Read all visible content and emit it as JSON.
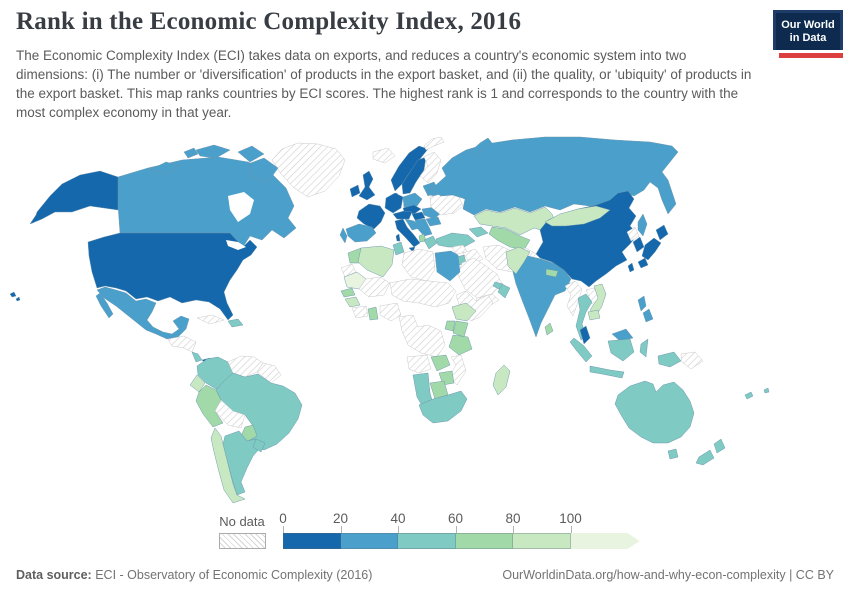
{
  "header": {
    "title": "Rank in the Economic Complexity Index, 2016",
    "subtitle": "The Economic Complexity Index (ECI) takes data on exports, and reduces a country's economic system into two dimensions: (i) The number or 'diversification' of products in the export basket, and (ii) the quality, or 'ubiquity' of products in the export basket. This map ranks countries by ECI scores. The highest rank is 1 and corresponds to the country with the most complex economy in that year.",
    "logo": {
      "line1": "Our World",
      "line2": "in Data"
    }
  },
  "legend": {
    "no_data_label": "No data",
    "ticks": [
      "0",
      "20",
      "40",
      "60",
      "80",
      "100"
    ]
  },
  "footer": {
    "source_label": "Data source:",
    "source_value": "ECI - Observatory of Economic Complexity (2016)",
    "url": "OurWorldinData.org/how-and-why-econ-complexity",
    "separator": "|",
    "license": "CC BY"
  },
  "chart_data": {
    "type": "heatmap",
    "map_type": "world-choropleth",
    "title": "Rank in the Economic Complexity Index, 2016",
    "year": "2016",
    "unit": "ECI rank (1 = most complex economy)",
    "legend_position": "bottom",
    "bins": [
      {
        "range": "0-20",
        "color": "#1568ab"
      },
      {
        "range": "20-40",
        "color": "#4ba0cb"
      },
      {
        "range": "40-60",
        "color": "#7fcac3"
      },
      {
        "range": "60-80",
        "color": "#a2d9a9"
      },
      {
        "range": "80-100",
        "color": "#c8e8c1"
      },
      {
        "range": "100+",
        "color": "#e8f4e0"
      },
      {
        "range": "No data",
        "pattern": "diagonal-hatch"
      }
    ],
    "countries": {
      "United States": "0-20",
      "Canada": "20-40",
      "Greenland": "No data",
      "Mexico": "20-40",
      "Nicaragua": "No data",
      "Costa Rica": "40-60",
      "Panama": "0-20",
      "Cuba": "No data",
      "Dominican Republic": "40-60",
      "Colombia": "40-60",
      "Venezuela": "No data",
      "Guyana": "No data",
      "Ecuador": "80-100",
      "Peru": "60-80",
      "Brazil": "40-60",
      "Bolivia": "No data",
      "Paraguay": "60-80",
      "Chile": "80-100",
      "Argentina": "40-60",
      "Uruguay": "40-60",
      "Iceland": "No data",
      "Ireland": "0-20",
      "United Kingdom": "0-20",
      "Norway": "0-20",
      "Sweden": "0-20",
      "Finland": "No data",
      "Denmark": "0-20",
      "Lithuania": "20-40",
      "Germany": "0-20",
      "France": "0-20",
      "Spain": "20-40",
      "Portugal": "20-40",
      "Austria": "0-20",
      "Czechia": "0-20",
      "Poland": "20-40",
      "Hungary": "0-20",
      "Italy": "0-20",
      "Croatia": "20-40",
      "Serbia": "20-40",
      "North Macedonia": "60-80",
      "Greece": "40-60",
      "Romania": "20-40",
      "Bulgaria": "20-40",
      "Belarus": "20-40",
      "Ukraine": "No data",
      "Russia": "20-40",
      "Svalbard": "No data",
      "Turkey": "40-60",
      "Georgia": "40-60",
      "Kazakhstan": "80-100",
      "Uzbekistan": "60-80",
      "Syria": "No data",
      "Iraq": "No data",
      "Iran": "No data",
      "Afghanistan": "No data",
      "Pakistan": "80-100",
      "Saudi Arabia": "No data",
      "Yemen": "No data",
      "Oman": "40-60",
      "United Arab Emirates": "40-60",
      "Israel": "0-20",
      "Jordan": "40-60",
      "Morocco": "60-80",
      "Western Sahara": "No data",
      "Algeria": "80-100",
      "Tunisia": "40-60",
      "Libya": "No data",
      "Egypt": "20-40",
      "Mauritania": "100+",
      "Mali": "No data",
      "Chad": "No data",
      "Senegal": "60-80",
      "Guinea": "80-100",
      "Côte d'Ivoire": "No data",
      "Ghana": "60-80",
      "Nigeria": "No data",
      "Democratic Republic of Congo": "No data",
      "Somalia": "No data",
      "Ethiopia": "80-100",
      "Kenya": "60-80",
      "Uganda": "60-80",
      "Tanzania": "60-80",
      "Angola": "No data",
      "Zambia": "60-80",
      "Mozambique": "No data",
      "Zimbabwe": "60-80",
      "Namibia": "40-60",
      "Botswana": "60-80",
      "South Africa": "40-60",
      "Madagascar": "80-100",
      "India": "20-40",
      "Nepal": "60-80",
      "Bangladesh": "60-80",
      "Sri Lanka": "60-80",
      "China": "0-20",
      "Mongolia": "80-100",
      "North Korea": "No data",
      "South Korea": "0-20",
      "Japan": "0-20",
      "Taiwan": "0-20",
      "Myanmar": "No data",
      "Thailand": "40-60",
      "Laos": "No data",
      "Vietnam": "80-100",
      "Cambodia": "80-100",
      "Malaysia": "0-20",
      "Malaysia (Borneo)": "20-40",
      "Indonesia": "40-60",
      "Philippines": "20-40",
      "Papua New Guinea": "No data",
      "Australia": "40-60",
      "New Zealand": "40-60",
      "New Caledonia": "40-60",
      "Fiji": "40-60"
    }
  }
}
